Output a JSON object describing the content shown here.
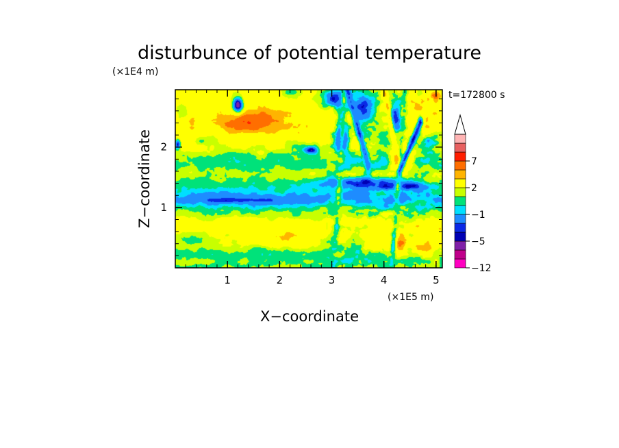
{
  "chart_data": {
    "type": "heatmap",
    "title": "disturbunce of potential temperature",
    "xlabel": "X−coordinate",
    "ylabel": "Z−coordinate",
    "x_unit": "(×1E5 m)",
    "y_unit": "(×1E4 m)",
    "time_label": "t=172800 s",
    "xlim": [
      0,
      5.12
    ],
    "ylim": [
      0,
      2.95
    ],
    "x_ticks": [
      1,
      2,
      3,
      4,
      5
    ],
    "y_ticks": [
      1,
      2
    ],
    "colorbar": {
      "levels": [
        -12,
        -10,
        -8,
        -5,
        -4,
        -3,
        -1,
        0,
        1,
        2,
        4,
        5,
        7,
        8,
        9
      ],
      "labeled_levels": [
        -12,
        -5,
        -1,
        2,
        7
      ],
      "colors": [
        "#ff00c0",
        "#c0008a",
        "#8020a8",
        "#0000b4",
        "#0a28e6",
        "#1e8cff",
        "#00e0ff",
        "#00e27a",
        "#c8ff00",
        "#ffff00",
        "#ffb400",
        "#ff6e00",
        "#ff1e00",
        "#e86060",
        "#ffb4b4"
      ],
      "extend": "max"
    },
    "baseline_layers": [
      {
        "z_range": [
          0,
          0.15
        ],
        "value": 1
      },
      {
        "z_range": [
          0.15,
          0.3
        ],
        "value": 0.5
      },
      {
        "z_range": [
          0.3,
          0.6
        ],
        "value": 2
      },
      {
        "z_range": [
          0.6,
          0.85
        ],
        "value": 3
      },
      {
        "z_range": [
          0.85,
          0.98
        ],
        "value": 1
      },
      {
        "z_range": [
          0.98,
          1.3
        ],
        "value": -1.5
      },
      {
        "z_range": [
          1.3,
          1.42
        ],
        "value": 0.5
      },
      {
        "z_range": [
          1.42,
          1.65
        ],
        "value": 1.5
      },
      {
        "z_range": [
          1.65,
          1.85
        ],
        "value": 0.3
      },
      {
        "z_range": [
          1.85,
          2.15
        ],
        "value": 2
      },
      {
        "z_range": [
          2.15,
          2.95
        ],
        "value": 2.5
      }
    ],
    "features": [
      {
        "x": 1.5,
        "z": 2.45,
        "rx": 1.1,
        "rz": 0.35,
        "value": 5
      },
      {
        "x": 1.45,
        "z": 2.4,
        "rx": 0.5,
        "rz": 0.15,
        "value": 7
      },
      {
        "x": 0.3,
        "z": 2.3,
        "rx": 0.4,
        "rz": 0.4,
        "value": 4
      },
      {
        "x": 0.15,
        "z": 2.6,
        "rx": 0.15,
        "rz": 0.2,
        "value": 1
      },
      {
        "x": 2.5,
        "z": 2.4,
        "rx": 0.6,
        "rz": 0.3,
        "value": 4
      },
      {
        "x": 0.6,
        "z": 2.1,
        "rx": 0.35,
        "rz": 0.1,
        "value": 1
      },
      {
        "x": 1.2,
        "z": 2.7,
        "rx": 0.12,
        "rz": 0.15,
        "value": -6
      },
      {
        "x": 2.4,
        "z": 2.0,
        "rx": 0.35,
        "rz": 0.12,
        "value": 0.5
      },
      {
        "x": 2.6,
        "z": 1.95,
        "rx": 0.15,
        "rz": 0.07,
        "value": -5
      },
      {
        "x": 0.05,
        "z": 2.05,
        "rx": 0.06,
        "rz": 0.1,
        "value": -4
      },
      {
        "x": 3.1,
        "z": 2.8,
        "rx": 0.35,
        "rz": 0.2,
        "value": -4
      },
      {
        "x": 3.2,
        "z": 2.15,
        "rx": 0.15,
        "rz": 0.35,
        "value": -5
      },
      {
        "x": 3.6,
        "z": 2.65,
        "rx": 0.25,
        "rz": 0.3,
        "value": -4
      },
      {
        "x": 4.25,
        "z": 2.5,
        "rx": 0.18,
        "rz": 0.35,
        "value": -4
      },
      {
        "x": 4.35,
        "z": 1.85,
        "rx": 0.25,
        "rz": 0.25,
        "value": 5
      },
      {
        "x": 4.3,
        "z": 1.7,
        "rx": 0.1,
        "rz": 0.12,
        "value": 7
      },
      {
        "x": 4.7,
        "z": 2.55,
        "rx": 0.35,
        "rz": 0.35,
        "value": 4
      },
      {
        "x": 3.9,
        "z": 2.2,
        "rx": 0.25,
        "rz": 0.25,
        "value": 0.5
      },
      {
        "x": 5.0,
        "z": 2.85,
        "rx": 0.15,
        "rz": 0.12,
        "value": 5
      },
      {
        "x": 2.2,
        "z": 2.9,
        "rx": 0.25,
        "rz": 0.1,
        "value": 0.5
      },
      {
        "x": 4.9,
        "z": 2.05,
        "rx": 0.2,
        "rz": 0.15,
        "value": -1
      },
      {
        "x": 3.5,
        "z": 1.4,
        "rx": 0.9,
        "rz": 0.12,
        "value": -4
      },
      {
        "x": 4.3,
        "z": 1.35,
        "rx": 0.55,
        "rz": 0.08,
        "value": -5
      },
      {
        "x": 1.2,
        "z": 1.12,
        "rx": 0.9,
        "rz": 0.06,
        "value": -4
      },
      {
        "x": 4.2,
        "z": 0.4,
        "rx": 0.35,
        "rz": 0.25,
        "value": 5
      },
      {
        "x": 3.85,
        "z": 0.45,
        "rx": 0.25,
        "rz": 0.18,
        "value": 4
      },
      {
        "x": 2.0,
        "z": 0.5,
        "rx": 0.8,
        "rz": 0.18,
        "value": 4
      },
      {
        "x": 4.8,
        "z": 0.35,
        "rx": 0.35,
        "rz": 0.2,
        "value": 4
      },
      {
        "x": 3.2,
        "z": 0.2,
        "rx": 0.25,
        "rz": 0.25,
        "value": 0.5
      },
      {
        "x": 0.3,
        "z": 0.45,
        "rx": 0.35,
        "rz": 0.12,
        "value": 1
      },
      {
        "x": 4.65,
        "z": 1.05,
        "rx": 0.3,
        "rz": 0.1,
        "value": 0.5
      }
    ],
    "filaments": [
      {
        "x0": 3.05,
        "z0": 0,
        "x1": 3.25,
        "z1": 2.95,
        "width": 0.06,
        "value": 0.5
      },
      {
        "x0": 4.15,
        "z0": 0,
        "x1": 4.4,
        "z1": 2.95,
        "width": 0.06,
        "value": 0.5
      },
      {
        "x0": 4.0,
        "z0": 2.95,
        "x1": 4.3,
        "z1": 1.6,
        "width": 0.05,
        "value": 4
      },
      {
        "x0": 4.3,
        "z0": 1.6,
        "x1": 4.7,
        "z1": 2.4,
        "width": 0.05,
        "value": -4
      },
      {
        "x0": 3.3,
        "z0": 2.95,
        "x1": 3.7,
        "z1": 1.7,
        "width": 0.05,
        "value": -3
      }
    ]
  }
}
